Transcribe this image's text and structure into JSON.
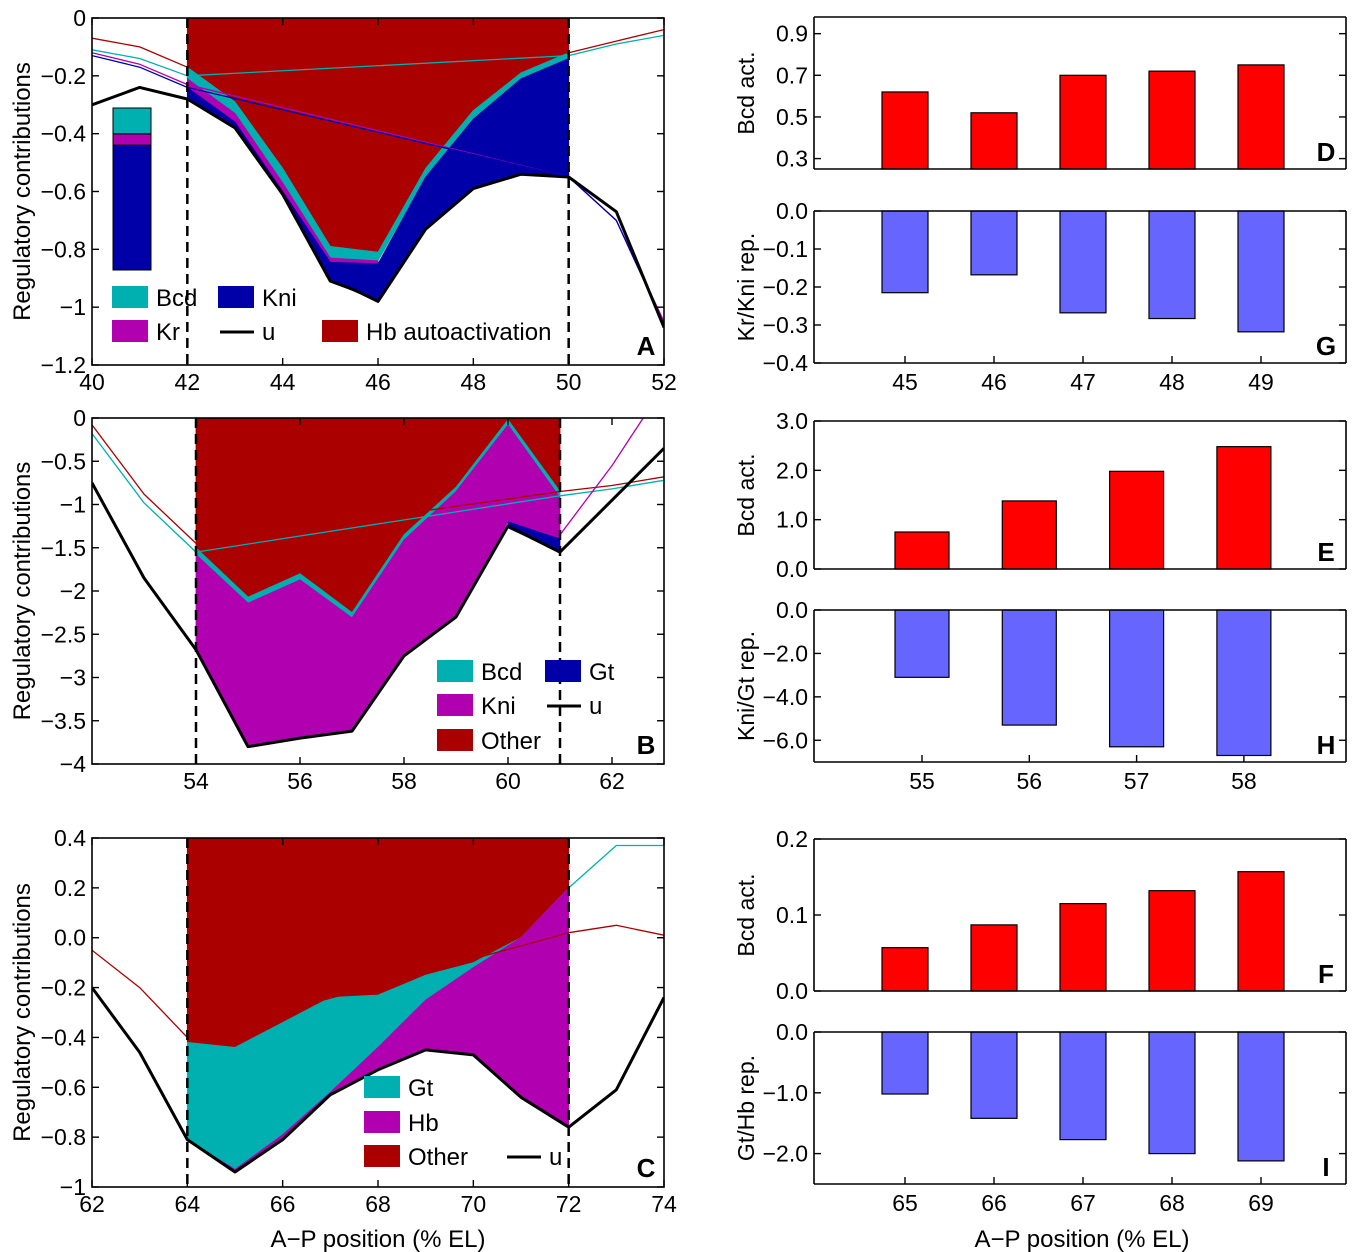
{
  "colors": {
    "bcd": "#00b0b0",
    "kni_blue": "#0000a8",
    "kr_magenta": "#b000b0",
    "hb_red": "#aa0000",
    "u_line": "#000000",
    "act_bar": "#ff0000",
    "rep_bar": "#6666ff"
  },
  "chart_data": [
    {
      "panel": "A",
      "type": "area",
      "xlabel": "",
      "ylabel": "Regulatory contributions",
      "xlim": [
        40,
        52
      ],
      "ylim": [
        -1.2,
        0
      ],
      "xticks": [
        "40",
        "42",
        "44",
        "46",
        "48",
        "50",
        "52"
      ],
      "yticks": [
        "0",
        "−0.2",
        "−0.4",
        "−0.6",
        "−0.8",
        "−1",
        "−1.2"
      ],
      "dashed_x": [
        42,
        50
      ],
      "legend": [
        {
          "label": "Bcd",
          "kind": "patch",
          "color": "#00b0b0"
        },
        {
          "label": "Kni",
          "kind": "patch",
          "color": "#0000a8"
        },
        {
          "label": "Kr",
          "kind": "patch",
          "color": "#b000b0"
        },
        {
          "label": "u",
          "kind": "line",
          "color": "#000000"
        },
        {
          "label": "Hb autoactivation",
          "kind": "patch",
          "color": "#aa0000"
        }
      ],
      "inset_bar": [
        {
          "color": "#00b0b0",
          "fraction": 0.16
        },
        {
          "color": "#b000b0",
          "fraction": 0.07
        },
        {
          "color": "#0000a8",
          "fraction": 0.77
        }
      ],
      "lines": [
        {
          "color": "#aa0000",
          "width": 1.3,
          "x": [
            40,
            41,
            42,
            50,
            51,
            52
          ],
          "y": [
            -0.07,
            -0.1,
            -0.17,
            -0.12,
            -0.08,
            -0.04
          ]
        },
        {
          "color": "#00b0b0",
          "width": 1.3,
          "x": [
            40,
            41,
            42,
            50,
            51,
            52
          ],
          "y": [
            -0.11,
            -0.14,
            -0.2,
            -0.13,
            -0.09,
            -0.06
          ]
        },
        {
          "color": "#b000b0",
          "width": 1.3,
          "x": [
            40,
            41,
            42,
            50,
            51,
            52
          ],
          "y": [
            -0.12,
            -0.16,
            -0.23,
            -0.55,
            -0.7,
            -1.05
          ]
        },
        {
          "color": "#0000a8",
          "width": 1.3,
          "x": [
            40,
            41,
            42,
            50,
            51,
            52
          ],
          "y": [
            -0.13,
            -0.17,
            -0.24,
            -0.55,
            -0.7,
            -1.06
          ]
        },
        {
          "color": "#000000",
          "width": 3,
          "x": [
            40,
            41,
            42,
            43,
            44,
            45,
            45.5,
            46,
            47,
            48,
            49,
            50,
            51,
            52
          ],
          "y": [
            -0.3,
            -0.24,
            -0.28,
            -0.38,
            -0.61,
            -0.91,
            -0.94,
            -0.98,
            -0.73,
            -0.59,
            -0.54,
            -0.55,
            -0.67,
            -1.07
          ]
        }
      ],
      "regions": [
        {
          "color": "#aa0000",
          "x": [
            42,
            43,
            44,
            45,
            46,
            47,
            48,
            49,
            50
          ],
          "top": [
            0,
            0,
            0,
            0,
            0,
            0,
            0,
            0,
            0
          ],
          "bottom": [
            -0.17,
            -0.29,
            -0.52,
            -0.79,
            -0.81,
            -0.52,
            -0.32,
            -0.19,
            -0.12
          ]
        },
        {
          "color": "#00b0b0",
          "x": [
            42,
            43,
            44,
            45,
            46,
            47,
            48,
            49,
            50
          ],
          "top": [
            -0.17,
            -0.29,
            -0.52,
            -0.79,
            -0.81,
            -0.52,
            -0.32,
            -0.19,
            -0.12
          ],
          "bottom": [
            -0.21,
            -0.33,
            -0.57,
            -0.83,
            -0.84,
            -0.55,
            -0.35,
            -0.21,
            -0.14
          ]
        },
        {
          "color": "#b000b0",
          "x": [
            42,
            43,
            44,
            45,
            46
          ],
          "top": [
            -0.21,
            -0.33,
            -0.57,
            -0.83,
            -0.84
          ],
          "bottom": [
            -0.24,
            -0.36,
            -0.6,
            -0.845,
            -0.85
          ]
        },
        {
          "color": "#0000a8",
          "x": [
            42,
            43,
            44,
            45,
            46,
            47,
            48,
            49,
            50
          ],
          "top": [
            -0.24,
            -0.36,
            -0.6,
            -0.845,
            -0.85,
            -0.55,
            -0.35,
            -0.21,
            -0.14
          ],
          "bottom": [
            -0.28,
            -0.38,
            -0.61,
            -0.91,
            -0.98,
            -0.73,
            -0.59,
            -0.54,
            -0.55
          ]
        }
      ]
    },
    {
      "panel": "B",
      "type": "area",
      "xlabel": "",
      "ylabel": "Regulatory contributions",
      "xlim": [
        52,
        63
      ],
      "ylim": [
        -4,
        0
      ],
      "xticks": [
        "54",
        "56",
        "58",
        "60",
        "62"
      ],
      "yticks": [
        "0",
        "−0.5",
        "−1",
        "−1.5",
        "−2",
        "−2.5",
        "−3",
        "−3.5",
        "−4"
      ],
      "dashed_x": [
        54,
        61
      ],
      "legend": [
        {
          "label": "Bcd",
          "kind": "patch",
          "color": "#00b0b0"
        },
        {
          "label": "Gt",
          "kind": "patch",
          "color": "#0000a8"
        },
        {
          "label": "Kni",
          "kind": "patch",
          "color": "#b000b0"
        },
        {
          "label": "u",
          "kind": "line",
          "color": "#000000"
        },
        {
          "label": "Other",
          "kind": "patch",
          "color": "#aa0000"
        }
      ],
      "lines": [
        {
          "color": "#aa0000",
          "width": 1.3,
          "x": [
            52,
            53,
            54,
            61,
            62,
            63
          ],
          "y": [
            -0.08,
            -0.88,
            -1.45,
            -0.85,
            -0.78,
            -0.68
          ]
        },
        {
          "color": "#00b0b0",
          "width": 1.3,
          "x": [
            52,
            53,
            54,
            61,
            62,
            63
          ],
          "y": [
            -0.18,
            -0.98,
            -1.55,
            -0.9,
            -0.82,
            -0.72
          ]
        },
        {
          "color": "#b000b0",
          "width": 1.3,
          "x": [
            61,
            62,
            62.6
          ],
          "y": [
            -1.35,
            -0.55,
            0.0
          ]
        },
        {
          "color": "#000000",
          "width": 3,
          "x": [
            52,
            53,
            54,
            55,
            56,
            57,
            58,
            59,
            60,
            61,
            62,
            63
          ],
          "y": [
            -0.75,
            -1.85,
            -2.68,
            -3.8,
            -3.7,
            -3.62,
            -2.75,
            -2.3,
            -1.25,
            -1.55,
            -0.95,
            -0.35
          ]
        }
      ],
      "regions": [
        {
          "color": "#aa0000",
          "x": [
            54,
            55,
            56,
            57,
            58,
            59,
            60,
            61
          ],
          "top": [
            0,
            0,
            0,
            0,
            0,
            0,
            0,
            0
          ],
          "bottom": [
            -1.5,
            -2.07,
            -1.8,
            -2.25,
            -1.35,
            -0.8,
            -0.02,
            -0.85
          ]
        },
        {
          "color": "#00b0b0",
          "x": [
            54,
            55,
            56,
            57,
            58,
            59,
            60,
            61
          ],
          "top": [
            -1.5,
            -2.07,
            -1.8,
            -2.25,
            -1.35,
            -0.8,
            -0.02,
            -0.85
          ],
          "bottom": [
            -1.58,
            -2.14,
            -1.87,
            -2.31,
            -1.41,
            -0.85,
            -0.08,
            -0.92
          ]
        },
        {
          "color": "#b000b0",
          "x": [
            54,
            55,
            56,
            57,
            58,
            59,
            60,
            61
          ],
          "top": [
            -1.58,
            -2.14,
            -1.87,
            -2.31,
            -1.41,
            -0.85,
            -0.08,
            -0.92
          ],
          "bottom": [
            -2.68,
            -3.8,
            -3.7,
            -3.62,
            -2.75,
            -2.3,
            -1.2,
            -1.4
          ]
        },
        {
          "color": "#0000a8",
          "x": [
            60,
            61
          ],
          "top": [
            -1.2,
            -1.4
          ],
          "bottom": [
            -1.27,
            -1.55
          ]
        }
      ]
    },
    {
      "panel": "C",
      "type": "area",
      "xlabel": "A−P position (% EL)",
      "ylabel": "Regulatory contributions",
      "xlim": [
        62,
        74
      ],
      "ylim": [
        -1,
        0.4
      ],
      "xticks": [
        "62",
        "64",
        "66",
        "68",
        "70",
        "72",
        "74"
      ],
      "yticks": [
        "0.4",
        "0.2",
        "0.0",
        "−0.2",
        "−0.4",
        "−0.6",
        "−0.8",
        "−1"
      ],
      "dashed_x": [
        64,
        72
      ],
      "legend": [
        {
          "label": "Gt",
          "kind": "patch",
          "color": "#00b0b0"
        },
        {
          "label": "Hb",
          "kind": "patch",
          "color": "#b000b0"
        },
        {
          "label": "Other",
          "kind": "patch",
          "color": "#aa0000"
        },
        {
          "label": "u",
          "kind": "line",
          "color": "#000000"
        }
      ],
      "lines": [
        {
          "color": "#aa0000",
          "width": 1.3,
          "x": [
            62,
            63,
            64,
            72,
            73,
            74
          ],
          "y": [
            -0.05,
            -0.2,
            -0.4,
            0.02,
            0.05,
            0.01
          ]
        },
        {
          "color": "#00b0b0",
          "width": 1.3,
          "x": [
            72,
            73,
            74
          ],
          "y": [
            0.2,
            0.37,
            0.37
          ]
        },
        {
          "color": "#000000",
          "width": 3,
          "x": [
            62,
            63,
            64,
            65,
            66,
            67,
            68,
            69,
            70,
            71,
            72,
            73,
            74
          ],
          "y": [
            -0.2,
            -0.46,
            -0.81,
            -0.94,
            -0.81,
            -0.63,
            -0.53,
            -0.45,
            -0.47,
            -0.64,
            -0.76,
            -0.61,
            -0.24
          ]
        }
      ],
      "regions": [
        {
          "color": "#aa0000",
          "x": [
            64,
            65,
            66,
            67,
            68,
            69,
            70,
            71,
            72
          ],
          "top": [
            0.4,
            0.4,
            0.4,
            0.4,
            0.4,
            0.4,
            0.4,
            0.4,
            0.4
          ],
          "bottom": [
            -0.42,
            -0.44,
            -0.34,
            -0.24,
            -0.23,
            -0.15,
            -0.1,
            0.0,
            0.2
          ]
        },
        {
          "color": "#00b0b0",
          "x": [
            64,
            65,
            66,
            67,
            68,
            69,
            70,
            71,
            72
          ],
          "top": [
            -0.42,
            -0.44,
            -0.34,
            -0.24,
            -0.23,
            -0.15,
            -0.1,
            0.0,
            0.2
          ],
          "bottom": [
            -0.81,
            -0.93,
            -0.79,
            -0.62,
            -0.44,
            -0.25,
            -0.12,
            0.0,
            0.2
          ]
        },
        {
          "color": "#b000b0",
          "x": [
            64,
            65,
            66,
            67,
            68,
            69,
            70,
            71,
            72
          ],
          "top": [
            -0.81,
            -0.93,
            -0.79,
            -0.62,
            -0.44,
            -0.25,
            -0.12,
            0.0,
            0.2
          ],
          "bottom": [
            -0.81,
            -0.94,
            -0.81,
            -0.63,
            -0.53,
            -0.45,
            -0.47,
            -0.64,
            -0.76
          ]
        }
      ]
    },
    {
      "panel": "D",
      "type": "bar",
      "ylabel": "Bcd act.",
      "categories": [
        "45",
        "46",
        "47",
        "48",
        "49"
      ],
      "values": [
        0.62,
        0.52,
        0.7,
        0.72,
        0.75
      ],
      "ylim": [
        0.25,
        0.98
      ],
      "yticks": [
        "0.9",
        "0.7",
        "0.5",
        "0.3"
      ],
      "ytick_values": [
        0.9,
        0.7,
        0.5,
        0.3
      ]
    },
    {
      "panel": "G",
      "type": "bar",
      "ylabel": "Kr/Kni rep.",
      "categories": [
        "45",
        "46",
        "47",
        "48",
        "49"
      ],
      "values": [
        -0.215,
        -0.168,
        -0.268,
        -0.283,
        -0.318
      ],
      "ylim": [
        -0.4,
        0.0
      ],
      "yticks": [
        "0.0",
        "−0.1",
        "−0.2",
        "−0.3",
        "−0.4"
      ],
      "ytick_values": [
        0.0,
        -0.1,
        -0.2,
        -0.3,
        -0.4
      ]
    },
    {
      "panel": "E",
      "type": "bar",
      "ylabel": "Bcd act.",
      "categories": [
        "55",
        "56",
        "57",
        "58"
      ],
      "values": [
        0.75,
        1.38,
        1.98,
        2.48
      ],
      "ylim": [
        0.0,
        3.0
      ],
      "yticks": [
        "3.0",
        "2.0",
        "1.0",
        "0.0"
      ],
      "ytick_values": [
        3.0,
        2.0,
        1.0,
        0.0
      ]
    },
    {
      "panel": "H",
      "type": "bar",
      "ylabel": "Kni/Gt rep.",
      "categories": [
        "55",
        "56",
        "57",
        "58"
      ],
      "values": [
        -3.1,
        -5.3,
        -6.3,
        -6.7
      ],
      "ylim": [
        -7.0,
        0.0
      ],
      "yticks": [
        "0.0",
        "−2.0",
        "−4.0",
        "−6.0"
      ],
      "ytick_values": [
        0.0,
        -2.0,
        -4.0,
        -6.0
      ]
    },
    {
      "panel": "F",
      "type": "bar",
      "ylabel": "Bcd act.",
      "categories": [
        "65",
        "66",
        "67",
        "68",
        "69"
      ],
      "values": [
        0.057,
        0.087,
        0.115,
        0.132,
        0.157
      ],
      "ylim": [
        0.0,
        0.2
      ],
      "yticks": [
        "0.2",
        "0.1",
        "0.0"
      ],
      "ytick_values": [
        0.2,
        0.1,
        0.0
      ]
    },
    {
      "panel": "I",
      "type": "bar",
      "xlabel": "A−P position (% EL)",
      "ylabel": "Gt/Hb rep.",
      "categories": [
        "65",
        "66",
        "67",
        "68",
        "69"
      ],
      "values": [
        -1.02,
        -1.42,
        -1.77,
        -2.0,
        -2.12
      ],
      "ylim": [
        -2.5,
        0.0
      ],
      "yticks": [
        "0.0",
        "−1.0",
        "−2.0"
      ],
      "ytick_values": [
        0.0,
        -1.0,
        -2.0
      ]
    }
  ]
}
